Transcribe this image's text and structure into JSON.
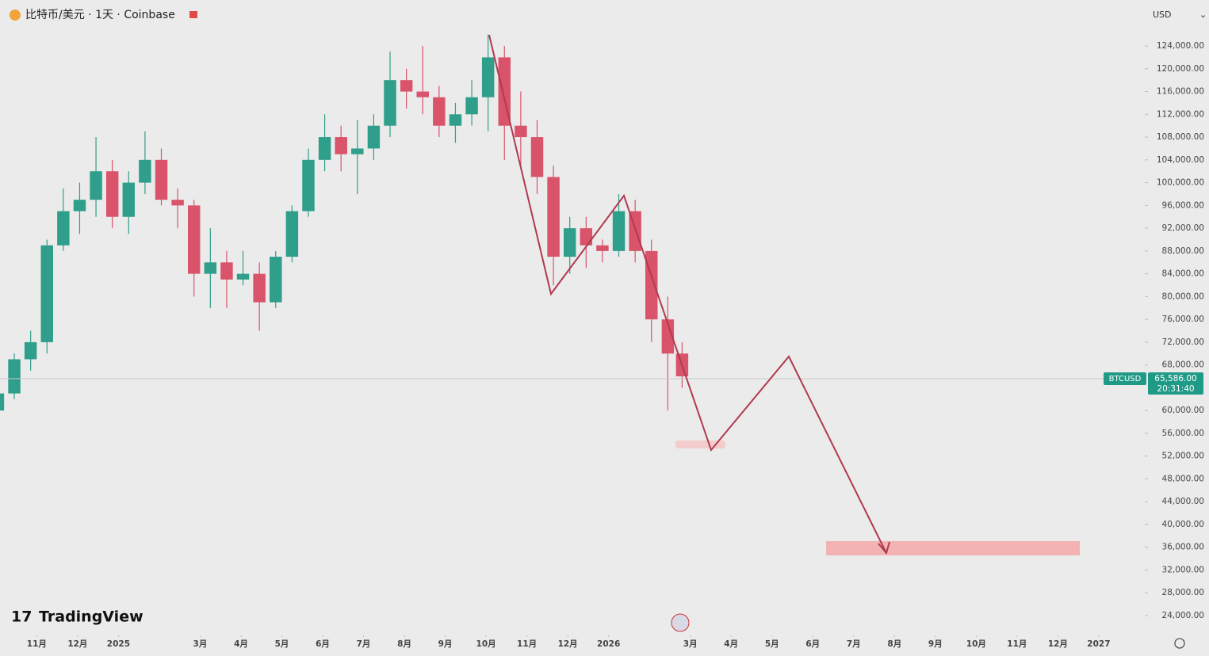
{
  "chart_data": {
    "type": "candlestick",
    "title": "比特币/美元 · 1天 · Coinbase",
    "currency": "USD",
    "brand": "TradingView",
    "up_color": "#2f9e8a",
    "down_color": "#d9546a",
    "xlim": [
      -0.9,
      27.05
    ],
    "ylim": [
      20800,
      132070
    ],
    "xticks": [
      {
        "value": 0,
        "label": "11月"
      },
      {
        "value": 1,
        "label": "12月"
      },
      {
        "value": 2,
        "label": "2025"
      },
      {
        "value": 4,
        "label": "3月"
      },
      {
        "value": 5,
        "label": "4月"
      },
      {
        "value": 6,
        "label": "5月"
      },
      {
        "value": 7,
        "label": "6月"
      },
      {
        "value": 8,
        "label": "7月"
      },
      {
        "value": 9,
        "label": "8月"
      },
      {
        "value": 10,
        "label": "9月"
      },
      {
        "value": 11,
        "label": "10月"
      },
      {
        "value": 12,
        "label": "11月"
      },
      {
        "value": 13,
        "label": "12月"
      },
      {
        "value": 14,
        "label": "2026"
      },
      {
        "value": 16,
        "label": "3月"
      },
      {
        "value": 17,
        "label": "4月"
      },
      {
        "value": 18,
        "label": "5月"
      },
      {
        "value": 19,
        "label": "6月"
      },
      {
        "value": 20,
        "label": "7月"
      },
      {
        "value": 21,
        "label": "8月"
      },
      {
        "value": 22,
        "label": "9月"
      },
      {
        "value": 23,
        "label": "10月"
      },
      {
        "value": 24,
        "label": "11月"
      },
      {
        "value": 25,
        "label": "12月"
      },
      {
        "value": 26,
        "label": "2027"
      }
    ],
    "yticks": [
      {
        "value": 124000,
        "label": "124,000.00"
      },
      {
        "value": 120000,
        "label": "120,000.00"
      },
      {
        "value": 116000,
        "label": "116,000.00"
      },
      {
        "value": 112000,
        "label": "112,000.00"
      },
      {
        "value": 108000,
        "label": "108,000.00"
      },
      {
        "value": 104000,
        "label": "104,000.00"
      },
      {
        "value": 100000,
        "label": "100,000.00"
      },
      {
        "value": 96000,
        "label": "96,000.00"
      },
      {
        "value": 92000,
        "label": "92,000.00"
      },
      {
        "value": 88000,
        "label": "88,000.00"
      },
      {
        "value": 84000,
        "label": "84,000.00"
      },
      {
        "value": 80000,
        "label": "80,000.00"
      },
      {
        "value": 76000,
        "label": "76,000.00"
      },
      {
        "value": 72000,
        "label": "72,000.00"
      },
      {
        "value": 68000,
        "label": "68,000.00"
      },
      {
        "value": 60000,
        "label": "60,000.00"
      },
      {
        "value": 56000,
        "label": "56,000.00"
      },
      {
        "value": 52000,
        "label": "52,000.00"
      },
      {
        "value": 48000,
        "label": "48,000.00"
      },
      {
        "value": 44000,
        "label": "44,000.00"
      },
      {
        "value": 40000,
        "label": "40,000.00"
      },
      {
        "value": 36000,
        "label": "36,000.00"
      },
      {
        "value": 32000,
        "label": "32,000.00"
      },
      {
        "value": 28000,
        "label": "28,000.00"
      },
      {
        "value": 24000,
        "label": "24,000.00"
      }
    ],
    "last_price": {
      "symbol": "BTCUSD",
      "value": 65586,
      "value_label": "65,586.00",
      "countdown": "20:31:40"
    },
    "x": [
      -0.95,
      -0.55,
      -0.15,
      0.25,
      0.65,
      1.05,
      1.45,
      1.85,
      2.25,
      2.65,
      3.05,
      3.45,
      3.85,
      4.25,
      4.65,
      5.05,
      5.45,
      5.85,
      6.25,
      6.65,
      7.05,
      7.45,
      7.85,
      8.25,
      8.65,
      9.05,
      9.45,
      9.85,
      10.25,
      10.65,
      11.05,
      11.45,
      11.85,
      12.25,
      12.65,
      13.05,
      13.45,
      13.85,
      14.25,
      14.65,
      15.05,
      15.45,
      15.8
    ],
    "open": [
      60000,
      63000,
      69000,
      72000,
      89000,
      95000,
      97000,
      102000,
      94000,
      100000,
      104000,
      97000,
      96000,
      84000,
      86000,
      83000,
      84000,
      79000,
      87000,
      95000,
      104000,
      108000,
      105000,
      106000,
      110000,
      118000,
      116000,
      115000,
      110000,
      112000,
      115000,
      122000,
      110000,
      108000,
      101000,
      87000,
      92000,
      89000,
      88000,
      95000,
      88000,
      76000,
      70000
    ],
    "high": [
      64000,
      70000,
      74000,
      90000,
      99000,
      100000,
      108000,
      104000,
      102000,
      109000,
      106000,
      99000,
      97000,
      92000,
      88000,
      88000,
      86000,
      88000,
      96000,
      106000,
      112000,
      110000,
      111000,
      112000,
      123000,
      120000,
      124000,
      117000,
      114000,
      118000,
      126000,
      124000,
      116000,
      111000,
      103000,
      94000,
      94000,
      90000,
      98000,
      97000,
      90000,
      80000,
      72000
    ],
    "low": [
      58000,
      62000,
      67000,
      70000,
      88000,
      91000,
      94000,
      92000,
      91000,
      98000,
      96000,
      92000,
      80000,
      78000,
      78000,
      82000,
      74000,
      78000,
      86000,
      94000,
      102000,
      102000,
      98000,
      104000,
      108000,
      113000,
      112000,
      108000,
      107000,
      110000,
      109000,
      104000,
      103000,
      98000,
      82000,
      84000,
      85000,
      86000,
      87000,
      86000,
      72000,
      60000,
      64000
    ],
    "close": [
      63000,
      69000,
      72000,
      89000,
      95000,
      97000,
      102000,
      94000,
      100000,
      104000,
      97000,
      96000,
      84000,
      86000,
      83000,
      84000,
      79000,
      87000,
      95000,
      104000,
      108000,
      105000,
      106000,
      110000,
      118000,
      116000,
      115000,
      110000,
      112000,
      115000,
      122000,
      110000,
      108000,
      101000,
      87000,
      92000,
      89000,
      88000,
      95000,
      88000,
      76000,
      70000,
      66000
    ]
  }
}
